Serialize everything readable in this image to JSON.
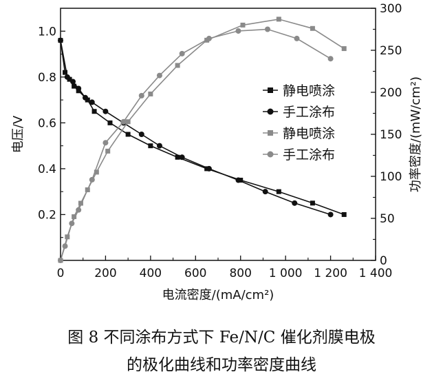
{
  "chart_data": {
    "type": "line",
    "xlabel": "电流密度/(mA/cm²)",
    "ylabel_left": "电压/V",
    "ylabel_right": "功率密度/(mW/cm²)",
    "xlim": [
      0,
      1400
    ],
    "ylim_left": [
      0,
      1.1
    ],
    "ylim_right": [
      0,
      300
    ],
    "x_ticks": [
      0,
      200,
      400,
      600,
      800,
      1000,
      1200,
      1400
    ],
    "x_tick_labels": [
      "0",
      "200",
      "400",
      "600",
      "800",
      "1 000",
      "1 200",
      "1 400"
    ],
    "y_left_ticks": [
      0.2,
      0.4,
      0.6,
      0.8,
      1.0
    ],
    "y_left_tick_labels": [
      "0.2",
      "0.4",
      "0.6",
      "0.8",
      "1.0"
    ],
    "y_right_ticks": [
      0,
      50,
      100,
      150,
      200,
      250,
      300
    ],
    "y_right_tick_labels": [
      "0",
      "50",
      "100",
      "150",
      "200",
      "250",
      "300"
    ],
    "grid": false,
    "legend_position": "center-right",
    "series": [
      {
        "name": "静电喷涂",
        "axis": "left",
        "marker": "square",
        "color": "#111111",
        "x": [
          0,
          20,
          40,
          60,
          80,
          120,
          150,
          220,
          300,
          400,
          520,
          650,
          800,
          970,
          1120,
          1260
        ],
        "y": [
          0.96,
          0.82,
          0.79,
          0.76,
          0.74,
          0.7,
          0.65,
          0.6,
          0.55,
          0.5,
          0.45,
          0.4,
          0.35,
          0.3,
          0.25,
          0.2
        ]
      },
      {
        "name": "手工涂布",
        "axis": "left",
        "marker": "circle",
        "color": "#111111",
        "x": [
          0,
          30,
          55,
          80,
          110,
          140,
          200,
          280,
          360,
          440,
          540,
          660,
          790,
          910,
          1040,
          1200
        ],
        "y": [
          0.96,
          0.8,
          0.78,
          0.75,
          0.71,
          0.69,
          0.65,
          0.6,
          0.55,
          0.5,
          0.45,
          0.4,
          0.35,
          0.3,
          0.25,
          0.2
        ]
      },
      {
        "name": "静电喷涂",
        "axis": "right",
        "marker": "square",
        "color": "#8a8a8a",
        "x": [
          0,
          30,
          60,
          90,
          120,
          160,
          210,
          300,
          400,
          520,
          650,
          810,
          970,
          1120,
          1260
        ],
        "y": [
          0,
          28,
          52,
          68,
          84,
          105,
          130,
          165,
          198,
          232,
          262,
          280,
          287,
          276,
          252
        ]
      },
      {
        "name": "手工涂布",
        "axis": "right",
        "marker": "circle",
        "color": "#8a8a8a",
        "x": [
          0,
          20,
          50,
          80,
          140,
          200,
          280,
          360,
          440,
          540,
          660,
          790,
          920,
          1050,
          1200
        ],
        "y": [
          0,
          17,
          44,
          60,
          96,
          140,
          165,
          196,
          220,
          246,
          264,
          273,
          275,
          264,
          240
        ]
      }
    ]
  },
  "caption": {
    "line1": "图 8  不同涂布方式下 Fe/N/C 催化剂膜电极",
    "line2": "的极化曲线和功率密度曲线"
  }
}
